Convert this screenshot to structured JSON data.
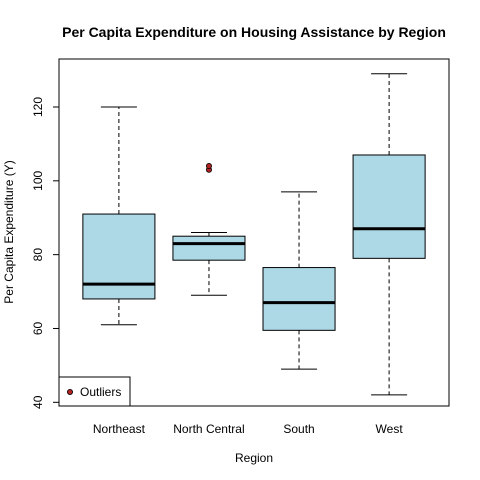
{
  "chart_data": {
    "type": "boxplot",
    "title": "Per Capita Expenditure on Housing Assistance by Region",
    "xlabel": "Region",
    "ylabel": "Per Capita Expenditure (Y)",
    "ylim": [
      39,
      133
    ],
    "yticks": [
      40,
      60,
      80,
      100,
      120
    ],
    "categories": [
      "Northeast",
      "North Central",
      "South",
      "West"
    ],
    "boxes": [
      {
        "category": "Northeast",
        "min": 61,
        "q1": 68,
        "median": 72,
        "q3": 91,
        "max": 120,
        "outliers": []
      },
      {
        "category": "North Central",
        "min": 69,
        "q1": 78.5,
        "median": 83,
        "q3": 85,
        "max": 86,
        "outliers": [
          103,
          104
        ]
      },
      {
        "category": "South",
        "min": 49,
        "q1": 59.5,
        "median": 67,
        "q3": 76.5,
        "max": 97,
        "outliers": []
      },
      {
        "category": "West",
        "min": 42,
        "q1": 79,
        "median": 87,
        "q3": 107,
        "max": 129,
        "outliers": []
      }
    ],
    "legend": {
      "position": "bottom-left",
      "entries": [
        "Outliers"
      ]
    },
    "grid": false
  },
  "colors": {
    "box_fill": "#add8e6",
    "outlier_fill": "#b22222",
    "stroke": "#000000"
  }
}
